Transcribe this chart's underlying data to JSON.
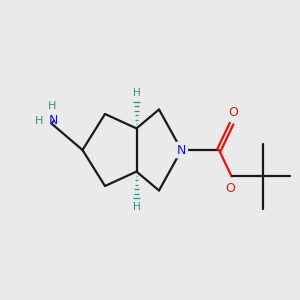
{
  "background_color": "#eaeaea",
  "bond_color": "#1a1a1a",
  "N_color": "#1010ee",
  "O_color": "#ee1010",
  "H_color": "#3a8888",
  "figsize": [
    3.0,
    3.0
  ],
  "dpi": 100,
  "xlim": [
    0,
    10
  ],
  "ylim": [
    0,
    10
  ]
}
